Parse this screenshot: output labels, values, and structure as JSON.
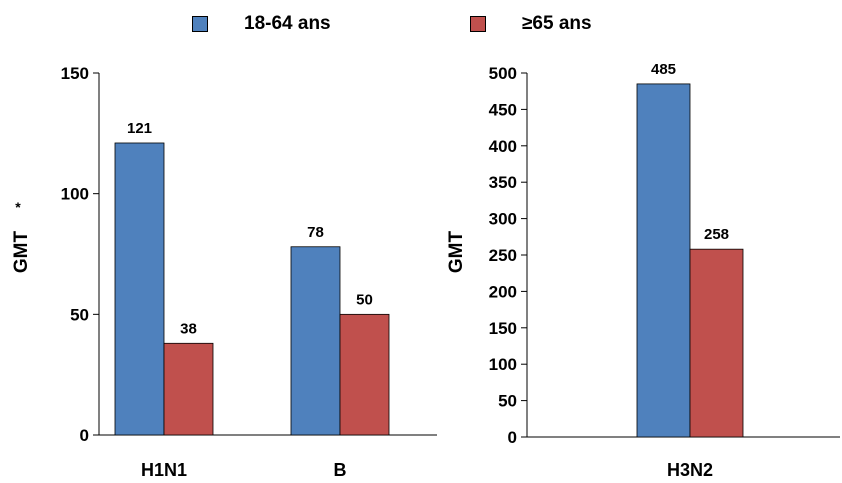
{
  "legend": {
    "items": [
      {
        "label": "18-64 ans",
        "color": "#4F81BD"
      },
      {
        "label": "≥65 ans",
        "color": "#C0504D"
      }
    ]
  },
  "chart_data": [
    {
      "type": "bar",
      "categories": [
        "H1N1",
        "B"
      ],
      "series": [
        {
          "name": "18-64 ans",
          "values": [
            121,
            78
          ]
        },
        {
          "name": "≥65 ans",
          "values": [
            38,
            50
          ]
        }
      ],
      "ylabel": "GMT",
      "ylabel_superscript": "*",
      "ylim": [
        0,
        150
      ],
      "yticks": [
        0,
        50,
        100,
        150
      ],
      "colors": [
        "#4F81BD",
        "#C0504D"
      ],
      "legend": "top",
      "grid": false
    },
    {
      "type": "bar",
      "categories": [
        "H3N2"
      ],
      "series": [
        {
          "name": "18-64 ans",
          "values": [
            485
          ]
        },
        {
          "name": "≥65 ans",
          "values": [
            258
          ]
        }
      ],
      "ylabel": "GMT",
      "ylim": [
        0,
        500
      ],
      "yticks": [
        0,
        50,
        100,
        150,
        200,
        250,
        300,
        350,
        400,
        450,
        500
      ],
      "colors": [
        "#4F81BD",
        "#C0504D"
      ],
      "legend": "top",
      "grid": false
    }
  ]
}
